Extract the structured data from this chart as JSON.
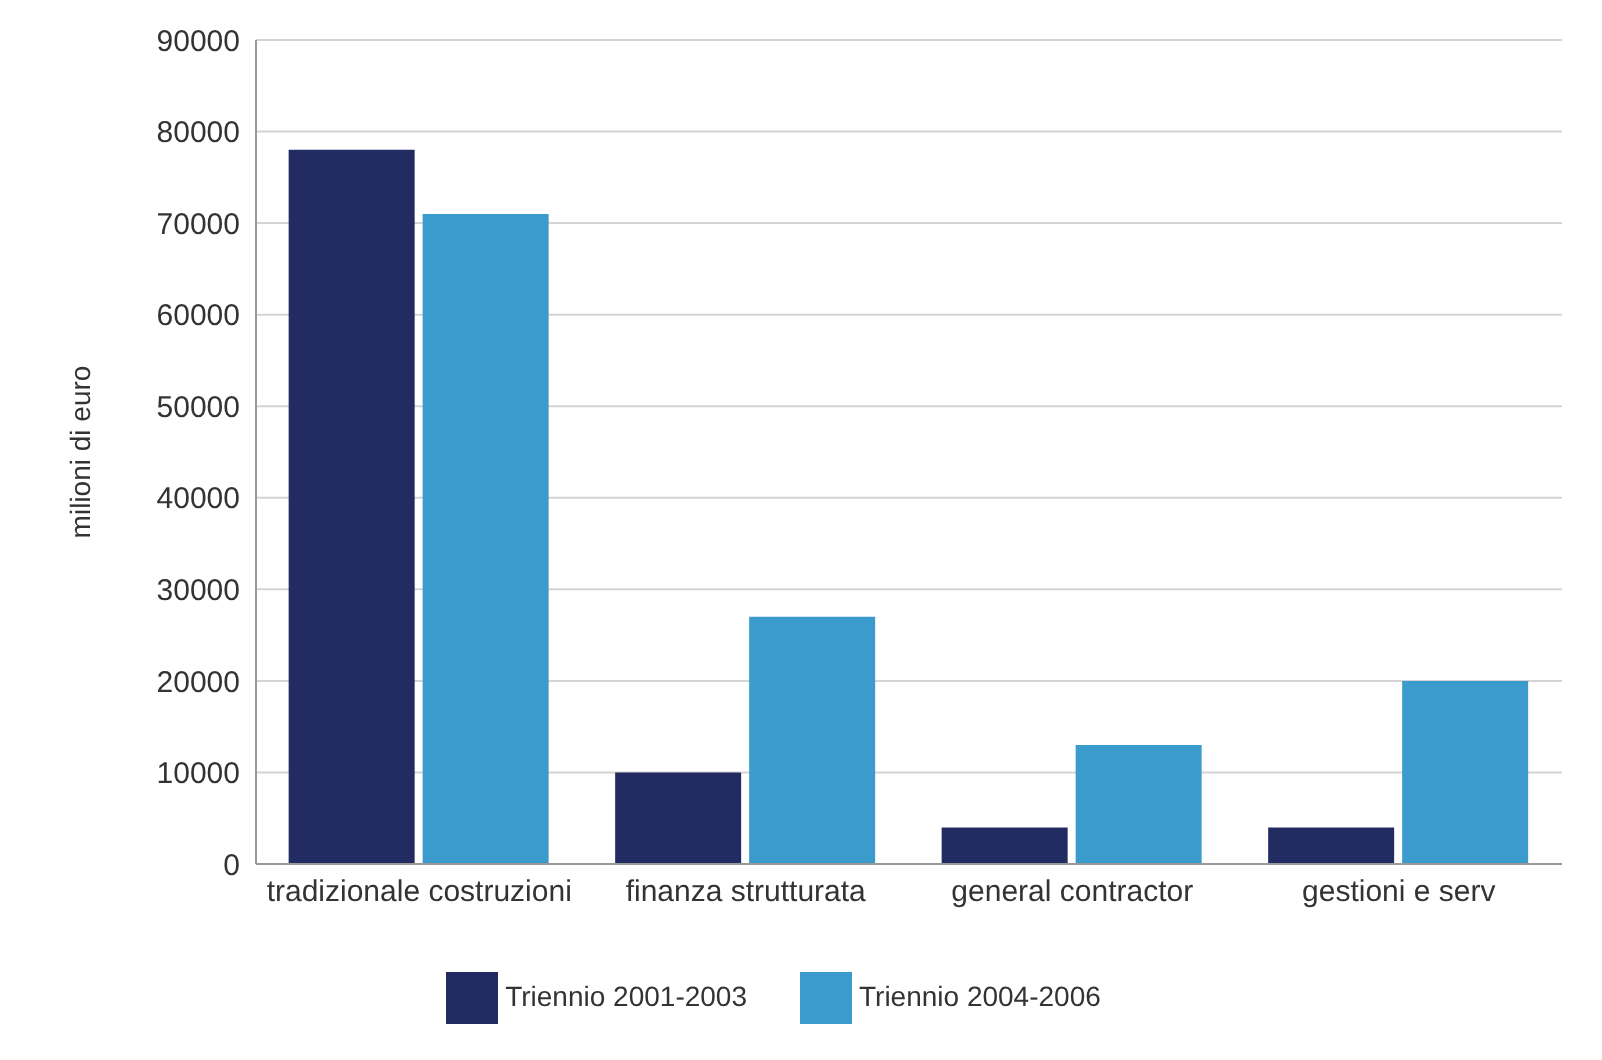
{
  "chart_data": {
    "type": "bar",
    "ylabel": "milioni di euro",
    "categories": [
      "tradizionale costruzioni",
      "finanza strutturata",
      "general contractor",
      "gestioni e serv"
    ],
    "series": [
      {
        "name": "Triennio 2001-2003",
        "color": "#222c63",
        "values": [
          78000,
          10000,
          4000,
          4000
        ]
      },
      {
        "name": "Triennio 2004-2006",
        "color": "#3a9bcc",
        "values": [
          71000,
          27000,
          13000,
          20000
        ]
      }
    ],
    "ylim": [
      0,
      90000
    ],
    "yticks": [
      0,
      10000,
      20000,
      30000,
      40000,
      50000,
      60000,
      70000,
      80000,
      90000
    ],
    "grid": "y",
    "legend": "bottom"
  }
}
